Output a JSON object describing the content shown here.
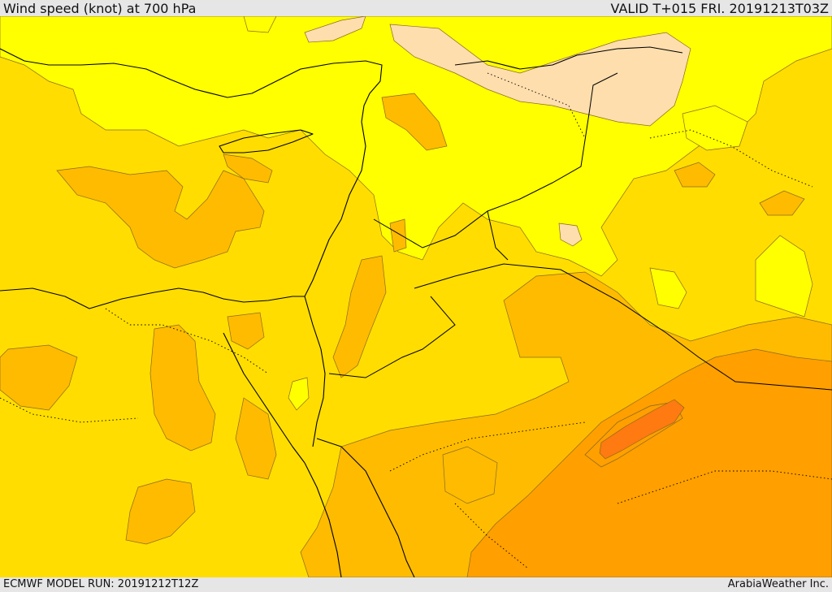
{
  "header": {
    "title": "Wind speed (knot) at 700 hPa",
    "valid": "VALID T+015 FRI. 20191213T03Z"
  },
  "footer": {
    "model_run": "ECMWF MODEL RUN: 20191212T12Z",
    "credit": "ArabiaWeather Inc."
  },
  "legend_colors": {
    "very_light": "#ffdead",
    "light": "#ffff00",
    "moderate": "#ffdd00",
    "fresh": "#ffbb00",
    "strong": "#ff9f00",
    "stronger": "#ff7a10"
  }
}
